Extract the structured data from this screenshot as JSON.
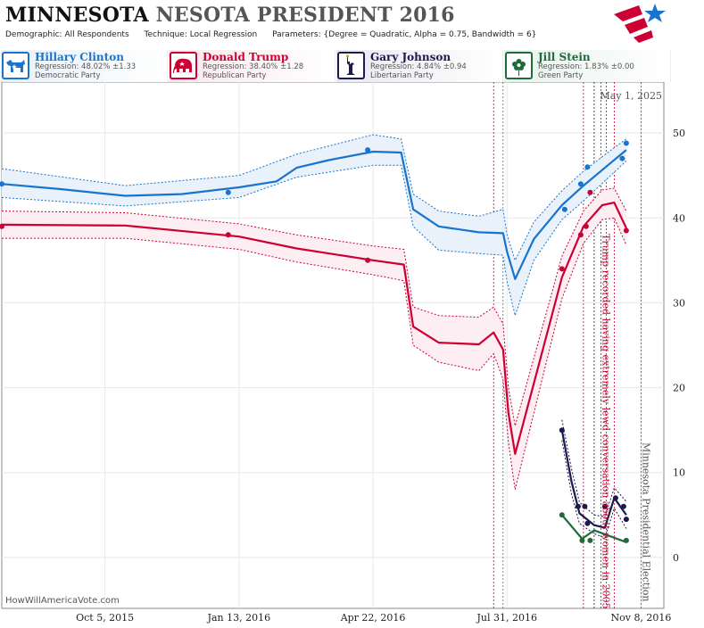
{
  "header": {
    "title_state": "MINNESOTA",
    "title_rest": "NESOTA PRESIDENT 2016",
    "demographic_label": "Demographic:",
    "demographic_value": "All Respondents",
    "technique_label": "Technique:",
    "technique_value": "Local Regression",
    "parameters_label": "Parameters:",
    "parameters_value": "{Degree = Quadratic, Alpha = 0.75, Bandwidth = 6}"
  },
  "legend": [
    {
      "name": "Hillary Clinton",
      "regression": "Regression: 48.02% ±1.33",
      "party": "Democratic Party",
      "color": "#1874CD",
      "icon": "donkey-icon"
    },
    {
      "name": "Donald Trump",
      "regression": "Regression: 38.40% ±1.28",
      "party": "Republican Party",
      "color": "#CC0033",
      "icon": "elephant-icon"
    },
    {
      "name": "Gary Johnson",
      "regression": "Regression: 4.84% ±0.94",
      "party": "Libertarian Party",
      "color": "#1A1A4E",
      "icon": "statue-of-liberty-icon"
    },
    {
      "name": "Jill Stein",
      "regression": "Regression: 1.83% ±0.00",
      "party": "Green Party",
      "color": "#1E6B3A",
      "icon": "flower-icon"
    }
  ],
  "watermark": "HowWillAmericaVote.com",
  "chart_data": {
    "type": "line",
    "date_label": "May 1, 2025",
    "x_ticks": [
      "Oct 5, 2015",
      "Jan 13, 2016",
      "Apr 22, 2016",
      "Jul 31, 2016",
      "Nov 8, 2016"
    ],
    "x_tick_dates": [
      "2015-10-05",
      "2016-01-13",
      "2016-04-22",
      "2016-07-31",
      "2016-11-08"
    ],
    "xlim": [
      "2015-07-20",
      "2016-11-25"
    ],
    "ylim": [
      -6,
      56
    ],
    "y_ticks": [
      0,
      10,
      20,
      30,
      40,
      50
    ],
    "grid": true,
    "annotations": [
      {
        "text": "Trump recorded having extremely lewd conversation about women in 2005",
        "date": "2016-10-07",
        "color": "#CC0033"
      },
      {
        "text": "Minnesota Presidential Election",
        "date": "2016-11-08",
        "color": "#555555"
      }
    ],
    "event_lines": [
      {
        "date": "2016-07-21",
        "color": "#CC0033"
      },
      {
        "date": "2016-07-28",
        "color": "#1874CD"
      },
      {
        "date": "2016-09-26",
        "color": "#CC0033"
      },
      {
        "date": "2016-10-04",
        "color": "#1A1A4E"
      },
      {
        "date": "2016-10-09",
        "color": "#CC0033"
      },
      {
        "date": "2016-10-13",
        "color": "#CC0033"
      },
      {
        "date": "2016-10-19",
        "color": "#CC0033"
      },
      {
        "date": "2016-11-08",
        "color": "#555555"
      }
    ],
    "series": [
      {
        "name": "Hillary Clinton",
        "color": "#1874CD",
        "band_fill": "#E9F1FA",
        "points": [
          [
            "2015-07-20",
            44.0
          ],
          [
            "2016-01-05",
            43.0
          ],
          [
            "2016-04-18",
            48.0
          ],
          [
            "2016-09-12",
            41.0
          ],
          [
            "2016-09-24",
            44.0
          ],
          [
            "2016-09-29",
            46.0
          ],
          [
            "2016-10-25",
            47.0
          ],
          [
            "2016-10-28",
            48.8
          ]
        ],
        "line": [
          [
            "2015-07-20",
            44.0
          ],
          [
            "2015-09-01",
            43.4
          ],
          [
            "2015-10-20",
            42.6
          ],
          [
            "2015-12-01",
            42.8
          ],
          [
            "2016-01-13",
            43.6
          ],
          [
            "2016-02-10",
            44.3
          ],
          [
            "2016-02-25",
            45.9
          ],
          [
            "2016-03-20",
            46.8
          ],
          [
            "2016-04-22",
            47.8
          ],
          [
            "2016-05-13",
            47.7
          ],
          [
            "2016-05-22",
            41.0
          ],
          [
            "2016-06-10",
            39.0
          ],
          [
            "2016-07-10",
            38.3
          ],
          [
            "2016-07-28",
            38.2
          ],
          [
            "2016-07-31",
            36.0
          ],
          [
            "2016-08-06",
            32.8
          ],
          [
            "2016-08-20",
            37.5
          ],
          [
            "2016-09-10",
            41.5
          ],
          [
            "2016-09-26",
            43.8
          ],
          [
            "2016-10-15",
            46.3
          ],
          [
            "2016-10-28",
            48.0
          ]
        ],
        "band": [
          [
            "2015-07-20",
            45.8,
            42.4
          ],
          [
            "2015-10-20",
            43.8,
            41.4
          ],
          [
            "2016-01-13",
            45.0,
            42.4
          ],
          [
            "2016-02-25",
            47.5,
            44.8
          ],
          [
            "2016-04-22",
            49.8,
            46.2
          ],
          [
            "2016-05-13",
            49.3,
            46.2
          ],
          [
            "2016-05-22",
            42.8,
            39.0
          ],
          [
            "2016-06-10",
            40.8,
            36.2
          ],
          [
            "2016-07-10",
            40.2,
            35.8
          ],
          [
            "2016-07-28",
            41.0,
            35.6
          ],
          [
            "2016-07-31",
            38.0,
            32.5
          ],
          [
            "2016-08-06",
            35.0,
            28.5
          ],
          [
            "2016-08-20",
            39.5,
            35.0
          ],
          [
            "2016-09-10",
            43.2,
            39.8
          ],
          [
            "2016-09-26",
            45.5,
            42.0
          ],
          [
            "2016-10-15",
            47.8,
            44.8
          ],
          [
            "2016-10-28",
            49.3,
            46.7
          ]
        ]
      },
      {
        "name": "Donald Trump",
        "color": "#CC0033",
        "band_fill": "#FCEEF2",
        "points": [
          [
            "2015-07-20",
            39.0
          ],
          [
            "2016-01-05",
            38.0
          ],
          [
            "2016-04-18",
            35.0
          ],
          [
            "2016-09-10",
            34.0
          ],
          [
            "2016-09-24",
            38.0
          ],
          [
            "2016-09-28",
            39.0
          ],
          [
            "2016-10-01",
            43.0
          ],
          [
            "2016-10-28",
            38.5
          ]
        ],
        "line": [
          [
            "2015-07-20",
            39.2
          ],
          [
            "2015-10-20",
            39.1
          ],
          [
            "2016-01-13",
            37.8
          ],
          [
            "2016-02-25",
            36.4
          ],
          [
            "2016-04-22",
            35.0
          ],
          [
            "2016-05-15",
            34.5
          ],
          [
            "2016-05-22",
            27.2
          ],
          [
            "2016-06-10",
            25.3
          ],
          [
            "2016-07-10",
            25.1
          ],
          [
            "2016-07-21",
            26.5
          ],
          [
            "2016-07-28",
            24.5
          ],
          [
            "2016-08-01",
            17.0
          ],
          [
            "2016-08-06",
            12.2
          ],
          [
            "2016-08-20",
            20.5
          ],
          [
            "2016-09-10",
            33.0
          ],
          [
            "2016-09-26",
            39.0
          ],
          [
            "2016-10-10",
            41.5
          ],
          [
            "2016-10-19",
            41.8
          ],
          [
            "2016-10-28",
            38.8
          ]
        ],
        "band": [
          [
            "2015-07-20",
            40.8,
            37.6
          ],
          [
            "2015-10-20",
            40.6,
            37.6
          ],
          [
            "2016-01-13",
            39.3,
            36.3
          ],
          [
            "2016-02-25",
            38.0,
            34.8
          ],
          [
            "2016-04-22",
            36.7,
            33.3
          ],
          [
            "2016-05-15",
            36.3,
            32.6
          ],
          [
            "2016-05-22",
            29.5,
            25.0
          ],
          [
            "2016-06-10",
            28.5,
            23.0
          ],
          [
            "2016-07-10",
            28.3,
            22.0
          ],
          [
            "2016-07-21",
            29.5,
            24.0
          ],
          [
            "2016-07-28",
            27.5,
            21.0
          ],
          [
            "2016-08-01",
            20.0,
            13.5
          ],
          [
            "2016-08-06",
            15.5,
            8.0
          ],
          [
            "2016-08-20",
            23.5,
            17.0
          ],
          [
            "2016-09-10",
            35.5,
            30.5
          ],
          [
            "2016-09-26",
            40.8,
            37.0
          ],
          [
            "2016-10-10",
            43.3,
            39.8
          ],
          [
            "2016-10-19",
            43.5,
            40.0
          ],
          [
            "2016-10-28",
            40.8,
            36.8
          ]
        ]
      },
      {
        "name": "Gary Johnson",
        "color": "#1A1A4E",
        "band_fill": "none",
        "points": [
          [
            "2016-09-10",
            15.0
          ],
          [
            "2016-09-22",
            6.0
          ],
          [
            "2016-09-27",
            6.0
          ],
          [
            "2016-09-29",
            4.0
          ],
          [
            "2016-10-12",
            6.0
          ],
          [
            "2016-10-20",
            7.0
          ],
          [
            "2016-10-26",
            6.0
          ],
          [
            "2016-10-28",
            4.5
          ]
        ],
        "line": [
          [
            "2016-09-10",
            15.0
          ],
          [
            "2016-09-17",
            9.0
          ],
          [
            "2016-09-23",
            5.2
          ],
          [
            "2016-10-04",
            3.8
          ],
          [
            "2016-10-12",
            3.5
          ],
          [
            "2016-10-19",
            7.0
          ],
          [
            "2016-10-28",
            5.0
          ]
        ],
        "band": [
          [
            "2016-09-10",
            16.2,
            13.8
          ],
          [
            "2016-09-17",
            10.5,
            7.5
          ],
          [
            "2016-09-23",
            6.5,
            4.0
          ],
          [
            "2016-10-04",
            5.0,
            2.8
          ],
          [
            "2016-10-12",
            4.8,
            2.3
          ],
          [
            "2016-10-19",
            8.2,
            5.8
          ],
          [
            "2016-10-28",
            6.6,
            3.4
          ]
        ]
      },
      {
        "name": "Jill Stein",
        "color": "#1E6B3A",
        "band_fill": "none",
        "points": [
          [
            "2016-09-10",
            5.0
          ],
          [
            "2016-09-25",
            2.0
          ],
          [
            "2016-10-01",
            2.0
          ],
          [
            "2016-10-28",
            2.0
          ]
        ],
        "line": [
          [
            "2016-09-10",
            5.0
          ],
          [
            "2016-09-25",
            2.2
          ],
          [
            "2016-10-04",
            3.2
          ],
          [
            "2016-10-28",
            1.8
          ]
        ],
        "band": []
      }
    ]
  }
}
